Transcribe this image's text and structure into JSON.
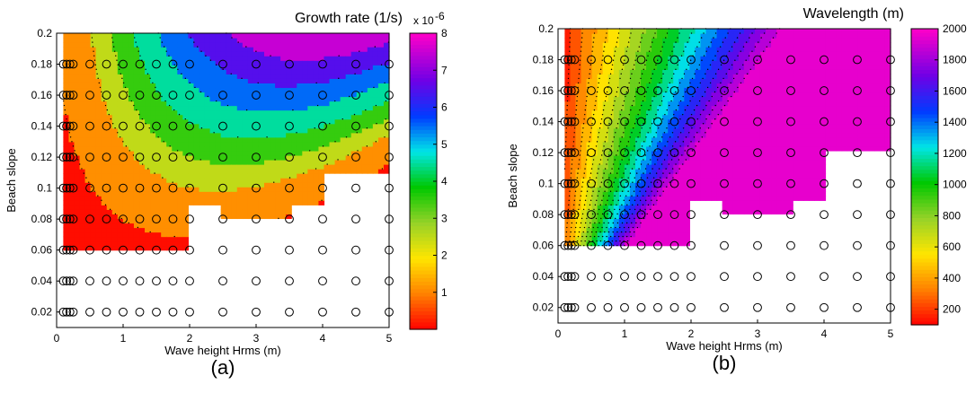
{
  "chart_data": [
    {
      "type": "heatmap",
      "panel_label": "(a)",
      "colorbar_title": "Growth rate (1/s)",
      "colorbar_exponent": "x 10",
      "colorbar_exponent_power": "-6",
      "colorbar_range": [
        0,
        8
      ],
      "colorbar_ticks": [
        "1",
        "2",
        "3",
        "4",
        "5",
        "6",
        "7",
        "8"
      ],
      "xlabel": "Wave height Hrms (m)",
      "ylabel": "Beach slope",
      "xlim": [
        0,
        5
      ],
      "ylim": [
        0.01,
        0.2
      ],
      "xticks": [
        "0",
        "1",
        "2",
        "3",
        "4",
        "5"
      ],
      "yticks": [
        "0.02",
        "0.04",
        "0.06",
        "0.08",
        "0.1",
        "0.12",
        "0.14",
        "0.16",
        "0.18",
        "0.2"
      ],
      "sample_x": [
        0.1,
        0.15,
        0.2,
        0.25,
        0.5,
        0.75,
        1.0,
        1.25,
        1.5,
        1.75,
        2.0,
        2.5,
        3.0,
        3.5,
        4.0,
        4.5,
        5.0
      ],
      "sample_y": [
        0.02,
        0.04,
        0.06,
        0.08,
        0.1,
        0.12,
        0.14,
        0.16,
        0.18
      ],
      "levels": [
        0.2,
        2.0,
        3.0,
        4.0,
        5.0,
        6.0,
        7.0
      ],
      "min_slope_by_height": [
        [
          0.1,
          0.06
        ],
        [
          2.0,
          0.09
        ],
        [
          2.5,
          0.08
        ],
        [
          3.0,
          0.08
        ],
        [
          3.5,
          0.09
        ],
        [
          4.0,
          0.11
        ],
        [
          5.0,
          0.12
        ]
      ]
    },
    {
      "type": "heatmap",
      "panel_label": "(b)",
      "colorbar_title": "Wavelength (m)",
      "colorbar_range": [
        100,
        2000
      ],
      "colorbar_ticks": [
        "200",
        "400",
        "600",
        "800",
        "1000",
        "1200",
        "1400",
        "1600",
        "1800",
        "2000"
      ],
      "xlabel": "Wave height Hrms (m)",
      "ylabel": "Beach slope",
      "xlim": [
        0,
        5
      ],
      "ylim": [
        0.01,
        0.2
      ],
      "xticks": [
        "0",
        "1",
        "2",
        "3",
        "4",
        "5"
      ],
      "yticks": [
        "0.02",
        "0.04",
        "0.06",
        "0.08",
        "0.1",
        "0.12",
        "0.14",
        "0.16",
        "0.18",
        "0.2"
      ],
      "sample_x": [
        0.1,
        0.15,
        0.2,
        0.25,
        0.5,
        0.75,
        1.0,
        1.25,
        1.5,
        1.75,
        2.0,
        2.5,
        3.0,
        3.5,
        4.0,
        4.5,
        5.0
      ],
      "sample_y": [
        0.02,
        0.04,
        0.06,
        0.08,
        0.1,
        0.12,
        0.14,
        0.16,
        0.18
      ],
      "levels": [
        200,
        300,
        400,
        500,
        600,
        700,
        800,
        900,
        1000,
        1100,
        1200,
        1300,
        1400,
        1500,
        1600,
        1700,
        1800,
        1900
      ],
      "min_slope_by_height": [
        [
          0.1,
          0.06
        ],
        [
          2.0,
          0.09
        ],
        [
          2.5,
          0.08
        ],
        [
          3.0,
          0.08
        ],
        [
          3.5,
          0.09
        ],
        [
          4.0,
          0.12
        ],
        [
          5.0,
          0.12
        ]
      ]
    }
  ]
}
